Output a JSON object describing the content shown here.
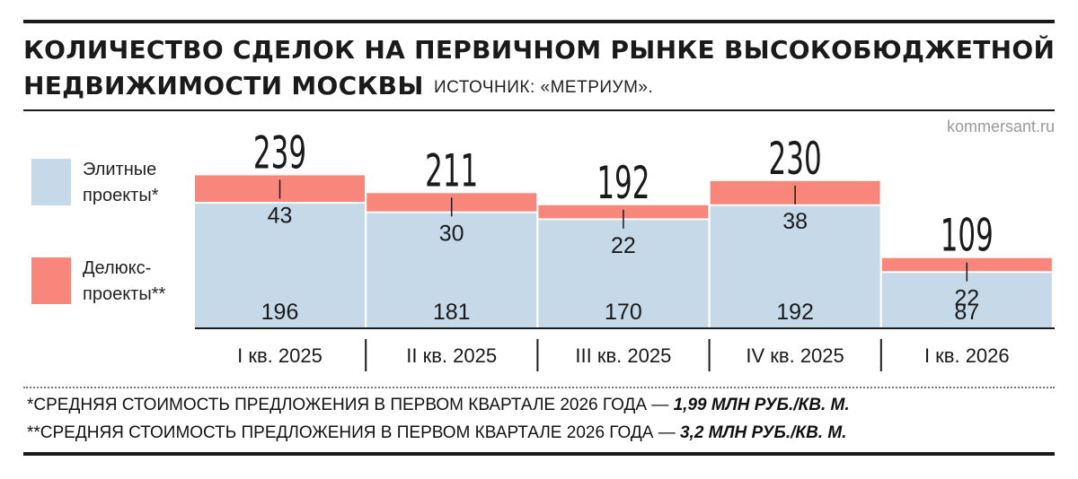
{
  "header": {
    "title_line1": "КОЛИЧЕСТВО СДЕЛОК НА ПЕРВИЧНОМ РЫНКЕ ВЫСОКОБЮДЖЕТНОЙ",
    "title_line2": "НЕДВИЖИМОСТИ МОСКВЫ",
    "source": "ИСТОЧНИК: «МЕТРИУМ».",
    "site": "kommersant.ru"
  },
  "legend": {
    "elite_label": "Элитные\nпроекты*",
    "deluxe_label": "Делюкс-\nпроекты**"
  },
  "colors": {
    "elite": "#c5d9e9",
    "deluxe": "#f8867a",
    "text": "#1a1a1a"
  },
  "chart_data": {
    "type": "bar",
    "stacked": true,
    "categories": [
      "I кв. 2025",
      "II кв. 2025",
      "III кв. 2025",
      "IV кв. 2025",
      "I кв. 2026"
    ],
    "totals": [
      239,
      211,
      192,
      230,
      109
    ],
    "series": [
      {
        "name": "Элитные проекты*",
        "values": [
          196,
          181,
          170,
          192,
          87
        ]
      },
      {
        "name": "Делюкс-проекты**",
        "values": [
          43,
          30,
          22,
          38,
          22
        ]
      }
    ],
    "ylim": [
      0,
      260
    ],
    "grid": false,
    "legend_position": "left"
  },
  "footnotes": {
    "note1_text": "*СРЕДНЯЯ СТОИМОСТЬ ПРЕДЛОЖЕНИЯ В ПЕРВОМ КВАРТАЛЕ 2026 ГОДА — ",
    "note1_value": "1,99 МЛН РУБ./КВ. М.",
    "note2_text": "**СРЕДНЯЯ СТОИМОСТЬ ПРЕДЛОЖЕНИЯ В ПЕРВОМ КВАРТАЛЕ 2026 ГОДА — ",
    "note2_value": "3,2 МЛН РУБ./КВ. М."
  }
}
